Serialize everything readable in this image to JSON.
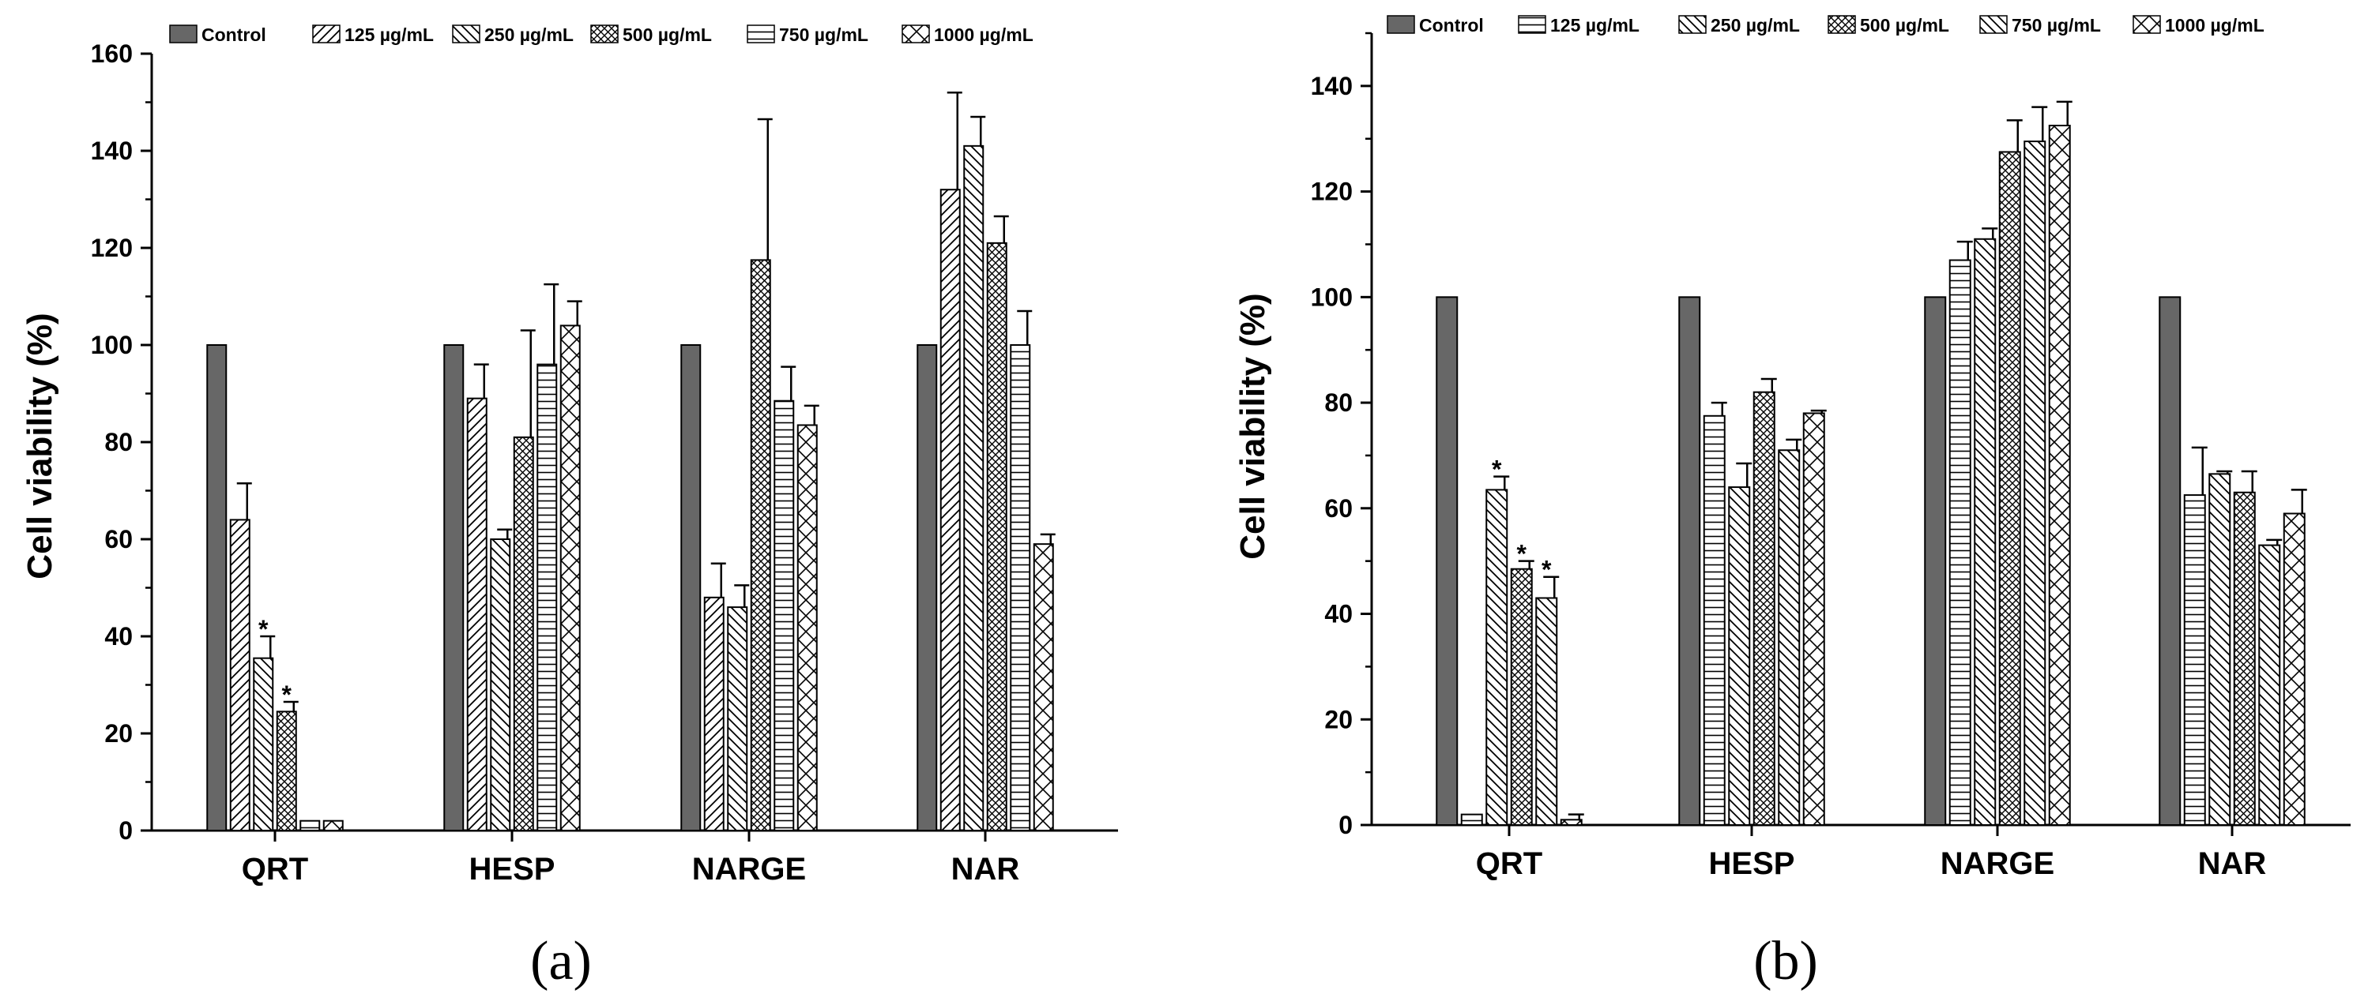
{
  "chart_data": [
    {
      "type": "bar",
      "panel_label": "(a)",
      "panel_letter": "a",
      "ylabel": "Cell viability (%)",
      "xlabel": "",
      "ylim": [
        0,
        160
      ],
      "yticks": [
        0,
        20,
        40,
        60,
        80,
        100,
        120,
        140,
        160
      ],
      "categories": [
        "QRT",
        "HESP",
        "NARGE",
        "NAR"
      ],
      "legend_position": "top",
      "series": [
        {
          "name": "Control",
          "pattern": "solid",
          "values": [
            100,
            100,
            100,
            100
          ],
          "errors": [
            0,
            0,
            0,
            0
          ],
          "sig": [
            false,
            false,
            false,
            false
          ]
        },
        {
          "name": "125 µg/mL",
          "pattern": "fwd",
          "values": [
            64,
            89,
            48,
            132
          ],
          "errors": [
            7.5,
            7,
            7,
            20
          ],
          "sig": [
            false,
            false,
            false,
            false
          ]
        },
        {
          "name": "250 µg/mL",
          "pattern": "back",
          "values": [
            35.5,
            60,
            46,
            141
          ],
          "errors": [
            4.5,
            2,
            4.5,
            6
          ],
          "sig": [
            true,
            false,
            false,
            false
          ]
        },
        {
          "name": "500 µg/mL",
          "pattern": "cross",
          "values": [
            24.5,
            81,
            117.5,
            121
          ],
          "errors": [
            2,
            22,
            29,
            5.5
          ],
          "sig": [
            true,
            false,
            false,
            false
          ]
        },
        {
          "name": "750 µg/mL",
          "pattern": "horiz",
          "values": [
            2,
            96,
            88.5,
            100
          ],
          "errors": [
            0,
            16.5,
            7,
            7
          ],
          "sig": [
            false,
            false,
            false,
            false
          ]
        },
        {
          "name": "1000 µg/mL",
          "pattern": "diamond",
          "values": [
            2,
            104,
            83.5,
            59
          ],
          "errors": [
            0,
            5,
            4,
            2
          ],
          "sig": [
            false,
            false,
            false,
            false
          ]
        }
      ],
      "significance_marker": "*"
    },
    {
      "type": "bar",
      "panel_label": "(b)",
      "panel_letter": "b",
      "ylabel": "Cell viability (%)",
      "xlabel": "",
      "ylim": [
        0,
        150
      ],
      "yticks": [
        0,
        20,
        40,
        60,
        80,
        100,
        120,
        140
      ],
      "categories": [
        "QRT",
        "HESP",
        "NARGE",
        "NAR"
      ],
      "legend_position": "top",
      "series": [
        {
          "name": "Control",
          "pattern": "solid",
          "values": [
            100,
            100,
            100,
            100
          ],
          "errors": [
            0,
            0,
            0,
            0
          ],
          "sig": [
            false,
            false,
            false,
            false
          ]
        },
        {
          "name": "125 µg/mL",
          "pattern": "horiz",
          "values": [
            2,
            77.5,
            107,
            62.5
          ],
          "errors": [
            0,
            2.5,
            3.5,
            9
          ],
          "sig": [
            false,
            false,
            false,
            false
          ]
        },
        {
          "name": "250 µg/mL",
          "pattern": "back",
          "values": [
            63.5,
            64,
            111,
            66.5
          ],
          "errors": [
            2.5,
            4.5,
            2,
            0.5
          ],
          "sig": [
            true,
            false,
            false,
            false
          ]
        },
        {
          "name": "500 µg/mL",
          "pattern": "cross",
          "values": [
            48.5,
            82,
            127.5,
            63
          ],
          "errors": [
            1.5,
            2.5,
            6,
            4
          ],
          "sig": [
            true,
            false,
            false,
            false
          ]
        },
        {
          "name": "750 µg/mL",
          "pattern": "back",
          "values": [
            43,
            71,
            129.5,
            53
          ],
          "errors": [
            4,
            2,
            6.5,
            1
          ],
          "sig": [
            true,
            false,
            false,
            false
          ]
        },
        {
          "name": "1000 µg/mL",
          "pattern": "diamond",
          "values": [
            1,
            78,
            132.5,
            59
          ],
          "errors": [
            1,
            0.5,
            4.5,
            4.5
          ],
          "sig": [
            false,
            false,
            false,
            false
          ]
        }
      ],
      "significance_marker": "*"
    }
  ]
}
